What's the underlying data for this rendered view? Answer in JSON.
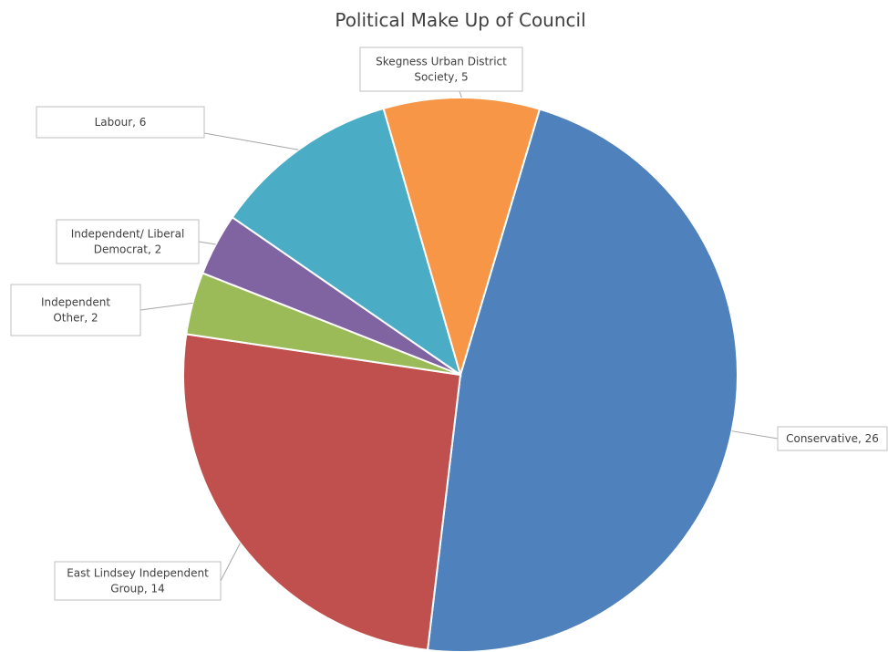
{
  "chart_data": {
    "type": "pie",
    "title": "Political Make Up of Council",
    "slices": [
      {
        "label": "Conservative",
        "value": 26,
        "color": "#4F81BD",
        "data_label": [
          "Conservative,  26"
        ]
      },
      {
        "label": "East Lindsey Independent Group",
        "value": 14,
        "color": "#C0504D",
        "data_label": [
          "East Lindsey Independent",
          "Group,  14"
        ]
      },
      {
        "label": "Independent Other",
        "value": 2,
        "color": "#9BBB59",
        "data_label": [
          "Independent",
          "Other,  2"
        ]
      },
      {
        "label": "Independent/ Liberal Democrat",
        "value": 2,
        "color": "#8064A2",
        "data_label": [
          "Independent/ Liberal",
          "Democrat,  2"
        ]
      },
      {
        "label": "Labour",
        "value": 6,
        "color": "#4BACC6",
        "data_label": [
          "Labour,  6"
        ]
      },
      {
        "label": "Skegness Urban District Society",
        "value": 5,
        "color": "#F79646",
        "data_label": [
          "Skegness Urban District",
          "Society,  5"
        ]
      }
    ],
    "legend": "none",
    "data_labels": "callouts"
  }
}
